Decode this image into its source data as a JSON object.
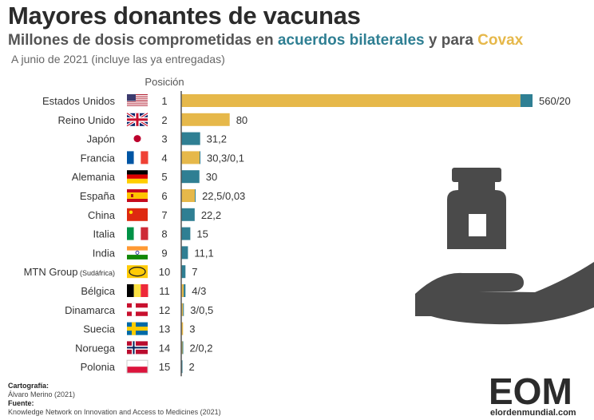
{
  "header": {
    "title": "Mayores donantes de vacunas",
    "subtitle_prefix": "Millones de dosis comprometidas en ",
    "subtitle_bilateral": "acuerdos bilaterales",
    "subtitle_mid": " y para ",
    "subtitle_covax": "Covax",
    "note": "A junio de 2021 (incluye las ya entregadas)"
  },
  "colors": {
    "bilateral": "#2f7f93",
    "covax": "#e6b84a",
    "axis": "#555555",
    "icon": "#4a4a4a"
  },
  "chart_data": {
    "type": "bar",
    "orientation": "horizontal",
    "stacked": true,
    "position_header": "Posición",
    "categories": [
      "Estados Unidos",
      "Reino Unido",
      "Japón",
      "Francia",
      "Alemania",
      "España",
      "China",
      "Italia",
      "India",
      "MTN Group",
      "Bélgica",
      "Dinamarca",
      "Suecia",
      "Noruega",
      "Polonia"
    ],
    "category_notes": [
      "",
      "",
      "",
      "",
      "",
      "",
      "",
      "",
      "",
      "(Sudáfrica)",
      "",
      "",
      "",
      "",
      ""
    ],
    "positions": [
      1,
      2,
      3,
      4,
      5,
      6,
      7,
      8,
      9,
      10,
      11,
      12,
      13,
      14,
      15
    ],
    "flags": [
      "us-flag",
      "uk-flag",
      "japan-flag",
      "france-flag",
      "germany-flag",
      "spain-flag",
      "china-flag",
      "italy-flag",
      "india-flag",
      "mtn-logo",
      "belgium-flag",
      "denmark-flag",
      "sweden-flag",
      "norway-flag",
      "poland-flag"
    ],
    "value_labels": [
      "560/20",
      "80",
      "31,2",
      "30,3/0,1",
      "30",
      "22,5/0,03",
      "22,2",
      "15",
      "11,1",
      "7",
      "4/3",
      "3/0,5",
      "3",
      "2/0,2",
      "2"
    ],
    "series": [
      {
        "name": "acuerdos bilaterales",
        "values": [
          20,
          0,
          31.2,
          0.1,
          30,
          0.03,
          22.2,
          15,
          11.1,
          7,
          3,
          0.5,
          0,
          0.2,
          2
        ]
      },
      {
        "name": "Covax",
        "values": [
          560,
          80,
          0,
          30.3,
          0,
          22.5,
          0,
          0,
          0,
          0,
          4,
          3,
          3,
          2,
          0
        ]
      }
    ],
    "xlim": [
      0,
      580
    ],
    "grid": false,
    "legend": "in-subtitle"
  },
  "footer": {
    "cartography_label": "Cartografía:",
    "cartography_value": "Álvaro Merino (2021)",
    "source_label": "Fuente:",
    "source_value": "Knowledge Network on Innovation and Access to Medicines (2021)"
  },
  "logo": {
    "text_main": "EOM",
    "text_sub": "elordenmundial.com"
  }
}
